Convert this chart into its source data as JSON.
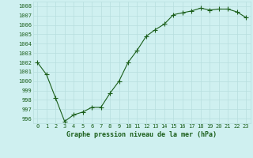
{
  "x": [
    0,
    1,
    2,
    3,
    4,
    5,
    6,
    7,
    8,
    9,
    10,
    11,
    12,
    13,
    14,
    15,
    16,
    17,
    18,
    19,
    20,
    21,
    22,
    23
  ],
  "y": [
    1002,
    1000.7,
    998.2,
    995.7,
    996.4,
    996.7,
    997.2,
    997.2,
    998.7,
    1000.0,
    1002.0,
    1003.3,
    1004.8,
    1005.5,
    1006.1,
    1007.1,
    1007.3,
    1007.5,
    1007.8,
    1007.6,
    1007.7,
    1007.7,
    1007.4,
    1006.8
  ],
  "title": "Graphe pression niveau de la mer (hPa)",
  "bg_color": "#cff0f0",
  "grid_color": "#b8dede",
  "line_color": "#1a5e1a",
  "marker_color": "#1a5e1a",
  "text_color": "#1a5e1a",
  "ylabel_values": [
    996,
    997,
    998,
    999,
    1000,
    1001,
    1002,
    1003,
    1004,
    1005,
    1006,
    1007,
    1008
  ],
  "ylim": [
    995.5,
    1008.5
  ],
  "xlim": [
    -0.5,
    23.5
  ],
  "tick_fontsize": 5.0,
  "title_fontsize": 6.0,
  "linewidth": 0.8,
  "markersize": 2.2
}
